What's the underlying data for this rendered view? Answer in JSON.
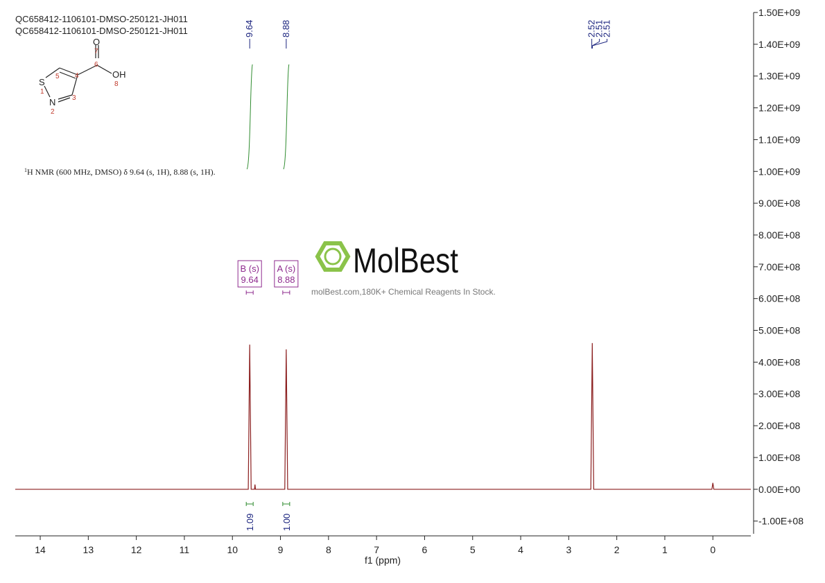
{
  "chart_data": {
    "type": "line",
    "title_lines": [
      "QC658412-1106101-DMSO-250121-JH011",
      "QC658412-1106101-DMSO-250121-JH011"
    ],
    "x_label": "f1 (ppm)",
    "xlim": [
      14.52,
      -0.79
    ],
    "xticks": [
      14,
      13,
      12,
      11,
      10,
      9,
      8,
      7,
      6,
      5,
      4,
      3,
      2,
      1,
      0
    ],
    "ylim": [
      -140000000,
      1500000000
    ],
    "yticks": [
      {
        "value": -100000000,
        "label": "-1.00E+08"
      },
      {
        "value": 0,
        "label": "0.00E+00"
      },
      {
        "value": 100000000,
        "label": "1.00E+08"
      },
      {
        "value": 200000000,
        "label": "2.00E+08"
      },
      {
        "value": 300000000,
        "label": "3.00E+08"
      },
      {
        "value": 400000000,
        "label": "4.00E+08"
      },
      {
        "value": 500000000,
        "label": "5.00E+08"
      },
      {
        "value": 600000000,
        "label": "6.00E+08"
      },
      {
        "value": 700000000,
        "label": "7.00E+08"
      },
      {
        "value": 800000000,
        "label": "8.00E+08"
      },
      {
        "value": 900000000,
        "label": "9.00E+08"
      },
      {
        "value": 1000000000,
        "label": "1.00E+09"
      },
      {
        "value": 1100000000,
        "label": "1.10E+09"
      },
      {
        "value": 1200000000,
        "label": "1.20E+09"
      },
      {
        "value": 1300000000,
        "label": "1.30E+09"
      },
      {
        "value": 1400000000,
        "label": "1.40E+09"
      },
      {
        "value": 1500000000,
        "label": "1.50E+09"
      }
    ],
    "series": [
      {
        "color": "#8b1e1e",
        "x": [
          14.52,
          9.67,
          9.64,
          9.61,
          9.54,
          9.53,
          9.52,
          8.91,
          8.88,
          8.85,
          2.54,
          2.51,
          2.48,
          0.02,
          0,
          -0.02,
          -0.79
        ],
        "values": [
          0,
          0,
          455000000,
          0,
          0,
          15000000,
          0,
          0,
          440000000,
          0,
          0,
          460000000,
          0,
          0,
          20000000,
          0,
          0
        ]
      }
    ],
    "peak_labels": [
      9.64,
      8.88,
      2.52,
      2.51,
      2.51
    ],
    "peak_label_color": "#1a237e",
    "integrals": {
      "x": [
        9.64,
        8.88
      ],
      "values": [
        1.09,
        1.0
      ],
      "value_labels": [
        "1.09",
        "1.00"
      ],
      "color": "#2e8b2e"
    },
    "multiplets": [
      {
        "name": "B (s)",
        "shift": 9.64
      },
      {
        "name": "A (s)",
        "shift": 8.88
      }
    ],
    "multiplet_color": "#8e2a8e",
    "description": {
      "sup": "1",
      "text": "H NMR (600 MHz, DMSO) δ 9.64 (s, 1H), 8.88 (s, 1H)."
    },
    "watermark": {
      "brand": "MolBest",
      "tagline": "molBest.com,180K+ Chemical Reagents In Stock."
    },
    "structure": {
      "O": "O",
      "n7": "7",
      "n6": "6",
      "OH": "OH",
      "n8": "8",
      "n5": "5",
      "n4": "4",
      "n3": "3",
      "S": "S",
      "n1": "1",
      "N": "N",
      "n2": "2"
    }
  }
}
